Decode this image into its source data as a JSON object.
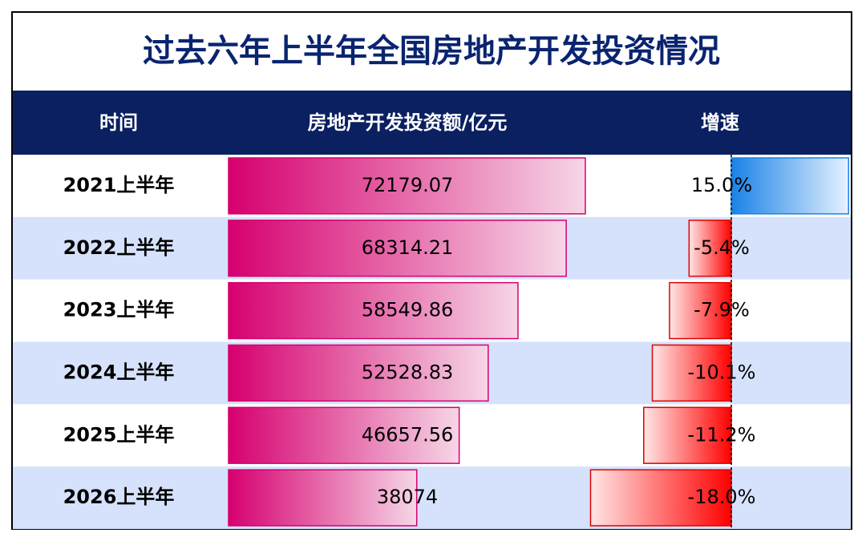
{
  "chart_data": {
    "type": "table-bars",
    "title": "过去六年上半年全国房地产开发投资情况",
    "category_header": "时间",
    "categories": [
      "2021上半年",
      "2022上半年",
      "2023上半年",
      "2024上半年",
      "2025上半年",
      "2026上半年"
    ],
    "series": [
      {
        "name": "房地产开发投资额/亿元",
        "color": "#d6006f",
        "values": [
          72179.07,
          68314.21,
          58549.86,
          52528.83,
          46657.56,
          38074
        ]
      },
      {
        "name": "增速",
        "values": [
          15.0,
          -5.4,
          -7.9,
          -10.1,
          -11.2,
          -18.0
        ],
        "value_labels": [
          "15.0%",
          "-5.4%",
          "-7.9%",
          "-10.1%",
          "-11.2%",
          "-18.0%"
        ]
      }
    ]
  }
}
